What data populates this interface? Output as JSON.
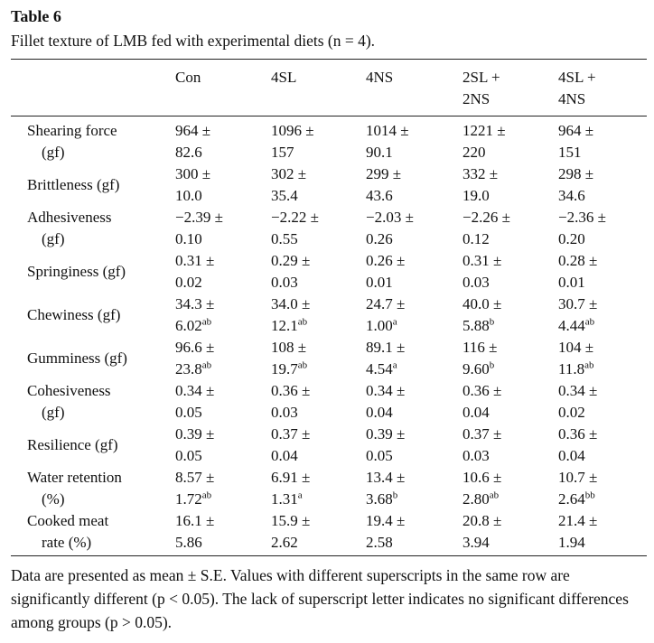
{
  "title": "Table 6",
  "caption": "Fillet texture of LMB fed with experimental diets (n = 4).",
  "columns": [
    {
      "l1": "Con",
      "l2": ""
    },
    {
      "l1": "4SL",
      "l2": ""
    },
    {
      "l1": "4NS",
      "l2": ""
    },
    {
      "l1": "2SL +",
      "l2": "2NS"
    },
    {
      "l1": "4SL +",
      "l2": "4NS"
    }
  ],
  "rows": [
    {
      "l1": "Shearing force",
      "l2": "(gf)",
      "cells": [
        [
          "964 ±",
          "82.6",
          ""
        ],
        [
          "1096 ±",
          "157",
          ""
        ],
        [
          "1014 ±",
          "90.1",
          ""
        ],
        [
          "1221 ±",
          "220",
          ""
        ],
        [
          "964 ±",
          "151",
          ""
        ]
      ]
    },
    {
      "l1": "Brittleness (gf)",
      "l2": "",
      "cells": [
        [
          "300 ±",
          "10.0",
          ""
        ],
        [
          "302 ±",
          "35.4",
          ""
        ],
        [
          "299 ±",
          "43.6",
          ""
        ],
        [
          "332 ±",
          "19.0",
          ""
        ],
        [
          "298 ±",
          "34.6",
          ""
        ]
      ]
    },
    {
      "l1": "Adhesiveness",
      "l2": "(gf)",
      "cells": [
        [
          "−2.39 ±",
          "0.10",
          ""
        ],
        [
          "−2.22 ±",
          "0.55",
          ""
        ],
        [
          "−2.03 ±",
          "0.26",
          ""
        ],
        [
          "−2.26 ±",
          "0.12",
          ""
        ],
        [
          "−2.36 ±",
          "0.20",
          ""
        ]
      ]
    },
    {
      "l1": "Springiness (gf)",
      "l2": "",
      "cells": [
        [
          "0.31 ±",
          "0.02",
          ""
        ],
        [
          "0.29 ±",
          "0.03",
          ""
        ],
        [
          "0.26 ±",
          "0.01",
          ""
        ],
        [
          "0.31 ±",
          "0.03",
          ""
        ],
        [
          "0.28 ±",
          "0.01",
          ""
        ]
      ]
    },
    {
      "l1": "Chewiness (gf)",
      "l2": "",
      "cells": [
        [
          "34.3 ±",
          "6.02",
          "ab"
        ],
        [
          "34.0 ±",
          "12.1",
          "ab"
        ],
        [
          "24.7 ±",
          "1.00",
          "a"
        ],
        [
          "40.0 ±",
          "5.88",
          "b"
        ],
        [
          "30.7 ±",
          "4.44",
          "ab"
        ]
      ]
    },
    {
      "l1": "Gumminess (gf)",
      "l2": "",
      "cells": [
        [
          "96.6 ±",
          "23.8",
          "ab"
        ],
        [
          "108 ±",
          "19.7",
          "ab"
        ],
        [
          "89.1 ±",
          "4.54",
          "a"
        ],
        [
          "116 ±",
          "9.60",
          "b"
        ],
        [
          "104 ±",
          "11.8",
          "ab"
        ]
      ]
    },
    {
      "l1": "Cohesiveness",
      "l2": "(gf)",
      "cells": [
        [
          "0.34 ±",
          "0.05",
          ""
        ],
        [
          "0.36 ±",
          "0.03",
          ""
        ],
        [
          "0.34 ±",
          "0.04",
          ""
        ],
        [
          "0.36 ±",
          "0.04",
          ""
        ],
        [
          "0.34 ±",
          "0.02",
          ""
        ]
      ]
    },
    {
      "l1": "Resilience (gf)",
      "l2": "",
      "cells": [
        [
          "0.39 ±",
          "0.05",
          ""
        ],
        [
          "0.37 ±",
          "0.04",
          ""
        ],
        [
          "0.39 ±",
          "0.05",
          ""
        ],
        [
          "0.37 ±",
          "0.03",
          ""
        ],
        [
          "0.36 ±",
          "0.04",
          ""
        ]
      ]
    },
    {
      "l1": "Water retention",
      "l2": "(%)",
      "cells": [
        [
          "8.57 ±",
          "1.72",
          "ab"
        ],
        [
          "6.91 ±",
          "1.31",
          "a"
        ],
        [
          "13.4 ±",
          "3.68",
          "b"
        ],
        [
          "10.6 ±",
          "2.80",
          "ab"
        ],
        [
          "10.7 ±",
          "2.64",
          "bb"
        ]
      ]
    },
    {
      "l1": "Cooked meat",
      "l2": "rate (%)",
      "cells": [
        [
          "16.1 ±",
          "5.86",
          ""
        ],
        [
          "15.9 ±",
          "2.62",
          ""
        ],
        [
          "19.4 ±",
          "2.58",
          ""
        ],
        [
          "20.8 ±",
          "3.94",
          ""
        ],
        [
          "21.4 ±",
          "1.94",
          ""
        ]
      ]
    }
  ],
  "footnote": "Data are presented as mean ± S.E. Values with different superscripts in the same row are significantly different (p < 0.05). The lack of superscript letter indicates no significant differences among groups (p > 0.05)."
}
